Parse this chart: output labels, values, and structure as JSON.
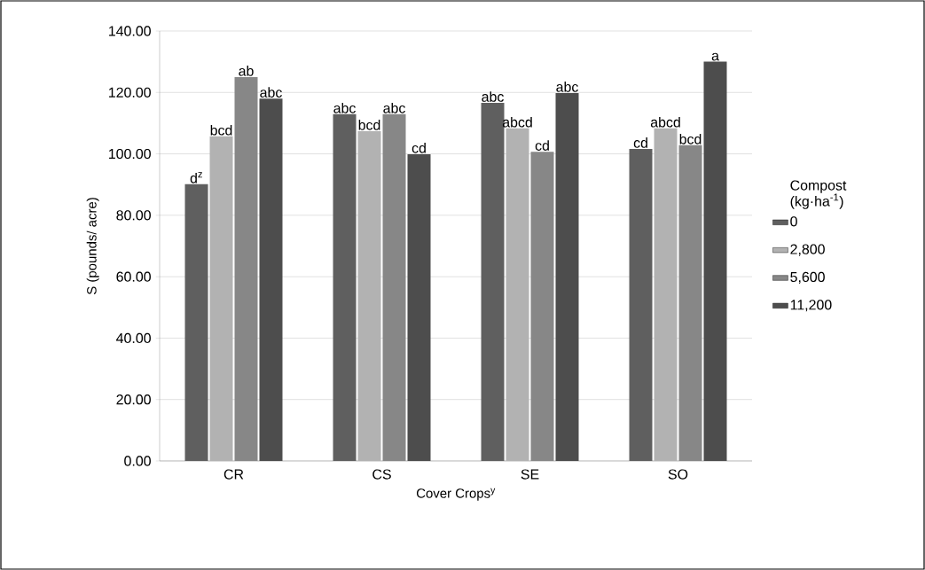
{
  "chart_data": {
    "type": "bar",
    "xlabel": "Cover Crops$^{y}$",
    "ylabel": "S (pounds/ acre)",
    "legend_title": "Compost (kg·ha$^{-1}$)",
    "categories": [
      "CR",
      "CS",
      "SE",
      "SO"
    ],
    "series": [
      {
        "name": "0",
        "color": "#5f5f5f",
        "values": [
          90.1,
          112.9,
          116.6,
          101.6
        ],
        "value_labels": [
          "d$^{z}$",
          "abc",
          "abc",
          "cd"
        ]
      },
      {
        "name": "2,800",
        "color": "#b2b2b2",
        "values": [
          105.7,
          107.4,
          108.3,
          108.3
        ],
        "value_labels": [
          "bcd",
          "bcd",
          "abcd",
          "abcd"
        ]
      },
      {
        "name": "5,600",
        "color": "#878787",
        "values": [
          125.0,
          112.9,
          100.7,
          102.8
        ],
        "value_labels": [
          "ab",
          "abc",
          "cd",
          "bcd"
        ]
      },
      {
        "name": "11,200",
        "color": "#4d4d4d",
        "values": [
          118.0,
          99.9,
          119.8,
          130.0
        ],
        "value_labels": [
          "abc",
          "cd",
          "abc",
          "a"
        ]
      }
    ],
    "ylim": [
      0,
      140
    ],
    "yticks": [
      {
        "value": 0,
        "label": "0.00"
      },
      {
        "value": 20,
        "label": "20.00"
      },
      {
        "value": 40,
        "label": "40.00"
      },
      {
        "value": 60,
        "label": "60.00"
      },
      {
        "value": 80,
        "label": "80.00"
      },
      {
        "value": 100,
        "label": "100.00"
      },
      {
        "value": 120,
        "label": "120.00"
      },
      {
        "value": 140,
        "label": "140.00"
      }
    ],
    "grid": "y",
    "legend": "right"
  }
}
